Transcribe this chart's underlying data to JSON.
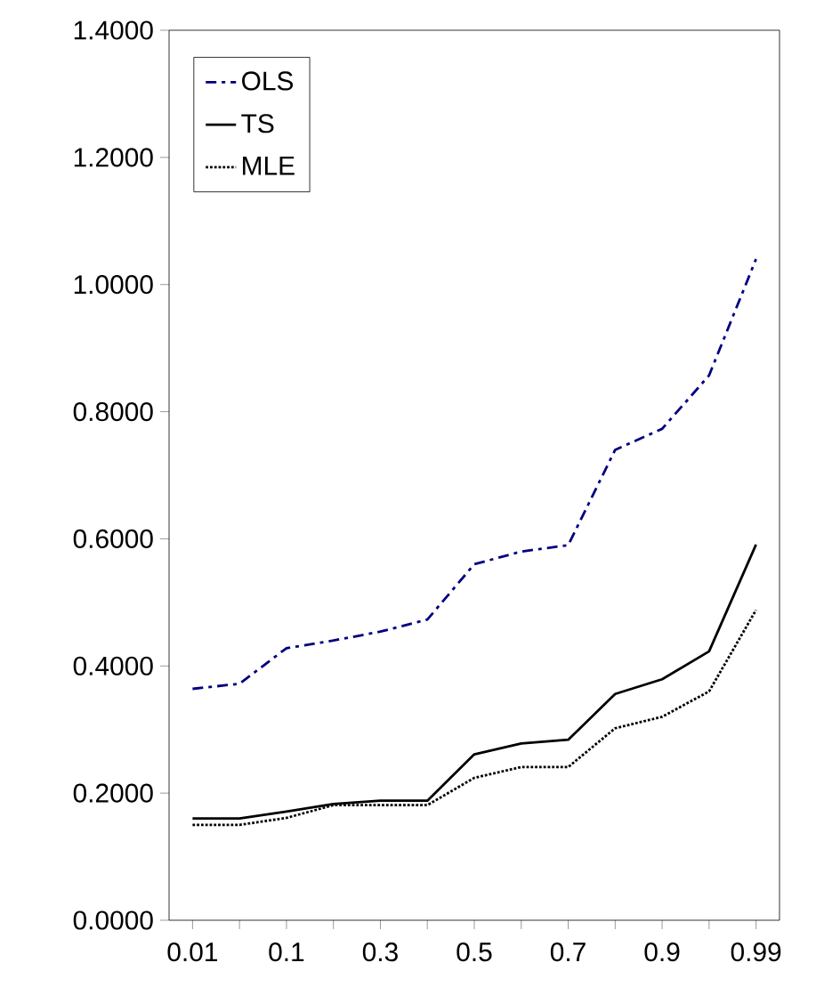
{
  "chart_data": {
    "type": "line",
    "categories": [
      "0.01",
      null,
      "0.1",
      null,
      "0.3",
      null,
      "0.5",
      null,
      "0.7",
      null,
      "0.9",
      null,
      "0.99"
    ],
    "series": [
      {
        "name": "OLS",
        "color": "#000080",
        "line_style": "dashdot",
        "values": [
          0.364,
          0.372,
          0.428,
          0.44,
          0.454,
          0.473,
          0.56,
          0.58,
          0.59,
          0.74,
          0.773,
          0.857,
          1.04
        ]
      },
      {
        "name": "TS",
        "color": "#000000",
        "line_style": "solid",
        "values": [
          0.16,
          0.16,
          0.171,
          0.183,
          0.188,
          0.188,
          0.261,
          0.278,
          0.284,
          0.356,
          0.379,
          0.423,
          0.591
        ]
      },
      {
        "name": "MLE",
        "color": "#000000",
        "line_style": "dotted",
        "values": [
          0.15,
          0.15,
          0.161,
          0.181,
          0.181,
          0.181,
          0.224,
          0.241,
          0.241,
          0.302,
          0.32,
          0.36,
          0.488
        ]
      }
    ],
    "ylim": [
      0,
      1.4
    ],
    "yticks": [
      {
        "value": 0,
        "label": "0.0000"
      },
      {
        "value": 0.2,
        "label": "0.2000"
      },
      {
        "value": 0.4,
        "label": "0.4000"
      },
      {
        "value": 0.6,
        "label": "0.6000"
      },
      {
        "value": 0.8,
        "label": "0.8000"
      },
      {
        "value": 1.0,
        "label": "1.0000"
      },
      {
        "value": 1.2,
        "label": "1.2000"
      },
      {
        "value": 1.4,
        "label": "1.4000"
      }
    ],
    "legend": "top left",
    "grid": false,
    "marker": "none"
  }
}
